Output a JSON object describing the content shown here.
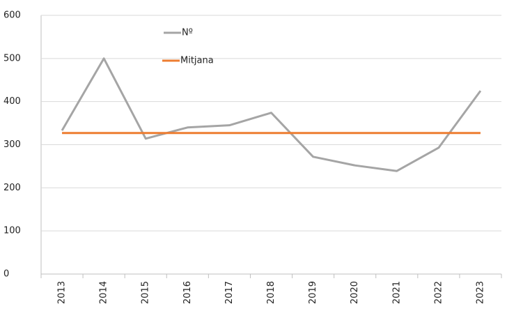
{
  "chart_data": {
    "type": "line",
    "categories": [
      "2013",
      "2014",
      "2015",
      "2016",
      "2017",
      "2018",
      "2019",
      "2020",
      "2021",
      "2022",
      "2023"
    ],
    "series": [
      {
        "name": "Nº",
        "color": "#a5a5a5",
        "values": [
          333,
          500,
          314,
          340,
          345,
          374,
          272,
          252,
          239,
          293,
          425
        ]
      },
      {
        "name": "Mitjana",
        "color": "#ed7d31",
        "values": [
          327,
          327,
          327,
          327,
          327,
          327,
          327,
          327,
          327,
          327,
          327
        ]
      }
    ],
    "ylim": [
      0,
      600
    ],
    "yticks": [
      0,
      100,
      200,
      300,
      400,
      500,
      600
    ],
    "grid": true
  }
}
